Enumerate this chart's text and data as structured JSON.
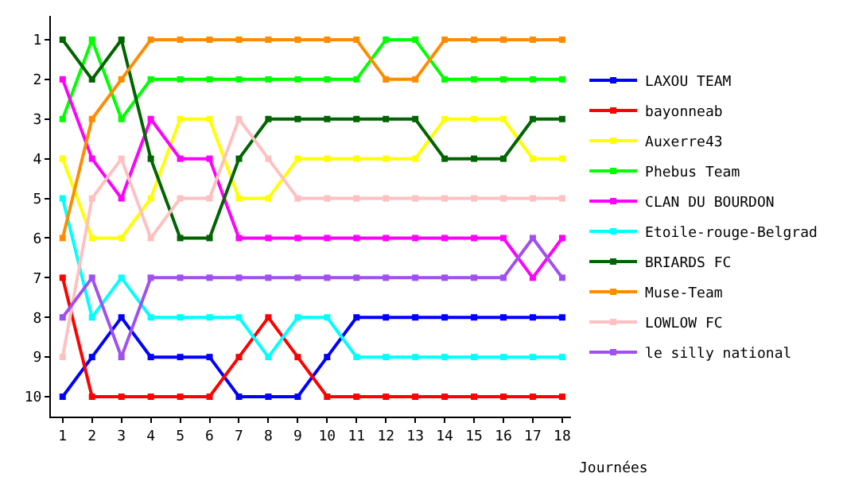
{
  "chart_data": {
    "type": "line",
    "xlabel": "Journées",
    "x": [
      1,
      2,
      3,
      4,
      5,
      6,
      7,
      8,
      9,
      10,
      11,
      12,
      13,
      14,
      15,
      16,
      17,
      18
    ],
    "xlim": [
      0.6,
      18.3
    ],
    "xticks": [
      1,
      2,
      3,
      4,
      5,
      6,
      7,
      8,
      9,
      10,
      11,
      12,
      13,
      14,
      15,
      16,
      17,
      18
    ],
    "ylim": [
      10.5,
      0.4
    ],
    "yticks": [
      1,
      2,
      3,
      4,
      5,
      6,
      7,
      8,
      9,
      10
    ],
    "grid": false,
    "legend": "right",
    "marker": "square",
    "line_style": "solid",
    "series": [
      {
        "name": "LAXOU TEAM",
        "color": "#0000ff",
        "values": [
          10,
          9,
          8,
          9,
          9,
          9,
          10,
          10,
          10,
          9,
          8,
          8,
          8,
          8,
          8,
          8,
          8,
          8
        ]
      },
      {
        "name": "bayonneab",
        "color": "#ff0000",
        "values": [
          7,
          10,
          10,
          10,
          10,
          10,
          9,
          8,
          9,
          10,
          10,
          10,
          10,
          10,
          10,
          10,
          10,
          10
        ]
      },
      {
        "name": "Auxerre43",
        "color": "#ffff00",
        "values": [
          4,
          6,
          6,
          5,
          3,
          3,
          5,
          5,
          4,
          4,
          4,
          4,
          4,
          3,
          3,
          3,
          4,
          4
        ]
      },
      {
        "name": "Phebus Team",
        "color": "#00ff00",
        "values": [
          3,
          1,
          3,
          2,
          2,
          2,
          2,
          2,
          2,
          2,
          2,
          1,
          1,
          2,
          2,
          2,
          2,
          2
        ]
      },
      {
        "name": "CLAN DU BOURDON",
        "color": "#ff00ff",
        "values": [
          2,
          4,
          5,
          3,
          4,
          4,
          6,
          6,
          6,
          6,
          6,
          6,
          6,
          6,
          6,
          6,
          7,
          6
        ]
      },
      {
        "name": "Etoile-rouge-Belgrad",
        "color": "#00ffff",
        "values": [
          5,
          8,
          7,
          8,
          8,
          8,
          8,
          9,
          8,
          8,
          9,
          9,
          9,
          9,
          9,
          9,
          9,
          9
        ]
      },
      {
        "name": "BRIARDS FC",
        "color": "#006400",
        "values": [
          1,
          2,
          1,
          4,
          6,
          6,
          4,
          3,
          3,
          3,
          3,
          3,
          3,
          4,
          4,
          4,
          3,
          3
        ]
      },
      {
        "name": "Muse-Team",
        "color": "#ff8c00",
        "values": [
          6,
          3,
          2,
          1,
          1,
          1,
          1,
          1,
          1,
          1,
          1,
          2,
          2,
          1,
          1,
          1,
          1,
          1
        ]
      },
      {
        "name": "LOWLOW FC",
        "color": "#ffc0c0",
        "values": [
          9,
          5,
          4,
          6,
          5,
          5,
          3,
          4,
          5,
          5,
          5,
          5,
          5,
          5,
          5,
          5,
          5,
          5
        ]
      },
      {
        "name": "le silly national",
        "color": "#a050f0",
        "values": [
          8,
          7,
          9,
          7,
          7,
          7,
          7,
          7,
          7,
          7,
          7,
          7,
          7,
          7,
          7,
          7,
          6,
          7
        ]
      }
    ]
  }
}
